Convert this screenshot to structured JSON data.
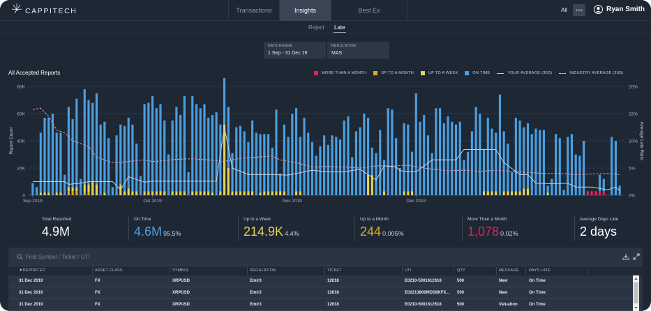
{
  "brand": {
    "name": "CAPPITECH"
  },
  "nav": {
    "tabs": [
      "Transactions",
      "Insights",
      "Best Ex"
    ],
    "active_tab": "Insights",
    "scope_label": "All",
    "user_name": "Ryan Smith"
  },
  "subtabs": {
    "items": [
      "Reject",
      "Late"
    ],
    "active": "Late"
  },
  "filters": {
    "date_range_label": "DATE RANGE",
    "date_range_value": "1 Sep - 31 Dec 19",
    "regulation_label": "REGULATION",
    "regulation_value": "MAS"
  },
  "chart_section": {
    "title": "All Accepted Reports",
    "legend": {
      "more_than_month": "MORE THAN A MONTH",
      "up_to_month": "UP TO A MONTH",
      "up_to_week": "UP TO A WEEK",
      "on_time": "ON TIME",
      "your_average": "YOUR AVERAGE (30D)",
      "industry_average": "INDUSTRY AVERAGE (30D)"
    },
    "colors": {
      "on_time": "#4a9fe0",
      "up_to_week": "#e2d45a",
      "up_to_month": "#e0a82a",
      "more_than_month": "#e0245e",
      "your_average": "#c9cfd8",
      "industry_average": "#d7a3be"
    }
  },
  "chart_data": {
    "type": "bar",
    "x_tick_labels": [
      "Sep 2019",
      "Oct 2019",
      "Nov 2019",
      "Dec 2019"
    ],
    "ylabel": "Report Count",
    "y2label": "Average Late Ratio",
    "ylim": [
      0,
      80000
    ],
    "y_ticks": [
      "0",
      "20K",
      "40K",
      "60K",
      "80K"
    ],
    "y2lim": [
      0,
      20
    ],
    "y2_ticks": [
      "0%",
      "5%",
      "10%",
      "15%",
      "20%"
    ],
    "series": [
      {
        "name": "ON TIME",
        "values": [
          9000,
          6000,
          44000,
          55000,
          55000,
          60000,
          44000,
          44000,
          15000,
          59000,
          50000,
          65000,
          12000,
          70000,
          62000,
          58000,
          67000,
          52000,
          52000,
          42000,
          6000,
          44000,
          44000,
          48000,
          52000,
          49000,
          35000,
          14000,
          64000,
          65000,
          70000,
          61000,
          64000,
          52000,
          30000,
          52000,
          62000,
          56000,
          70000,
          17000,
          70000,
          64000,
          61000,
          64000,
          54000,
          57000,
          61000,
          49000,
          50000,
          45000,
          28000,
          47000,
          48000,
          44000,
          36000,
          52000,
          46000,
          43000,
          42000,
          42000,
          32000,
          60000,
          13000,
          49000,
          43000,
          60000,
          61000,
          40000,
          57000,
          46000,
          39000,
          29000,
          36000,
          44000,
          37000,
          44000,
          43000,
          41000,
          55000,
          58000,
          28000,
          47000,
          50000,
          60000,
          42000,
          20000,
          31000,
          48000,
          23000,
          64000,
          63000,
          42000,
          20000,
          50000,
          49000,
          29000,
          75000,
          54000,
          59000,
          44000,
          31000,
          64000,
          64000,
          53000,
          58000,
          54000,
          52000,
          54000,
          26000,
          32000,
          47000,
          65000,
          60000,
          31000,
          54000,
          46000,
          43000,
          74000,
          44000,
          35000,
          14000,
          54000,
          52000,
          45000,
          48000,
          45000,
          49000,
          48000,
          48000,
          5000,
          12000,
          45000,
          42000,
          4000,
          43000,
          45000,
          30000,
          29000,
          40000,
          0,
          0,
          0,
          12000,
          9000,
          0,
          43000,
          40000,
          7000
        ],
        "total": "4.6M"
      },
      {
        "name": "UP TO A WEEK",
        "values": [
          0,
          0,
          2000,
          2000,
          2000,
          0,
          2000,
          2000,
          0,
          3000,
          3000,
          3000,
          0,
          6000,
          6000,
          10000,
          8000,
          0,
          2000,
          0,
          0,
          0,
          8000,
          3000,
          5000,
          3000,
          3000,
          0,
          3000,
          3000,
          3000,
          3000,
          3000,
          3000,
          0,
          3000,
          3000,
          3000,
          3000,
          0,
          3000,
          3000,
          3000,
          3000,
          3000,
          2000,
          0,
          3000,
          52000,
          20000,
          3000,
          3000,
          3000,
          3000,
          3000,
          3000,
          0,
          2000,
          3000,
          3000,
          3000,
          3000,
          3000,
          3000,
          0,
          0,
          3000,
          3000,
          0,
          0,
          0,
          0,
          0,
          0,
          0,
          0,
          0,
          0,
          0,
          0,
          0,
          0,
          0,
          0,
          15000,
          15000,
          0,
          0,
          3000,
          0,
          0,
          0,
          0,
          3000,
          3000,
          3000,
          0,
          0,
          0,
          0,
          0,
          0,
          0,
          0,
          0,
          0,
          0,
          0,
          0,
          0,
          0,
          0,
          0,
          3000,
          3000,
          3000,
          3000,
          0,
          3000,
          3000,
          3000,
          3000,
          3000,
          5000,
          5000,
          0,
          0,
          0,
          0,
          2000,
          0,
          0,
          0,
          0,
          0,
          0,
          0,
          0,
          0,
          0,
          0,
          0,
          0,
          0,
          0,
          0,
          0,
          0,
          0,
          0
        ],
        "total": "214.9K"
      },
      {
        "name": "UP TO A MONTH",
        "values": [
          0,
          0,
          0,
          0,
          0,
          0,
          0,
          0,
          0,
          3000,
          3000,
          3000,
          0,
          2000,
          2000,
          0,
          0,
          0,
          0,
          0,
          0,
          0,
          0,
          0,
          0,
          0,
          0,
          0,
          0,
          0,
          0,
          0,
          0,
          0,
          0,
          0,
          0,
          0,
          0,
          0,
          0,
          0,
          0,
          0,
          0,
          0,
          0,
          0,
          0,
          0,
          0,
          0,
          0,
          0,
          0,
          0,
          0,
          0,
          0,
          0,
          0,
          0,
          0,
          0,
          0,
          0,
          0,
          0,
          0,
          0,
          0,
          0,
          0,
          0,
          0,
          0,
          0,
          0,
          0,
          0,
          0,
          0,
          0,
          0,
          0,
          0,
          0,
          0,
          0,
          0,
          0,
          0,
          0,
          0,
          0,
          0,
          0,
          0,
          0,
          0,
          0,
          0,
          0,
          0,
          0,
          0,
          0,
          0,
          0,
          0,
          0,
          0,
          0,
          0,
          0,
          0,
          0,
          0,
          0,
          0,
          0,
          0,
          0,
          0,
          0,
          0,
          0,
          0,
          0,
          0,
          0,
          0,
          0,
          0,
          0,
          0,
          0,
          0,
          0,
          0,
          0,
          0,
          0,
          0,
          0,
          0,
          0,
          0,
          0,
          0
        ],
        "total": "244"
      },
      {
        "name": "MORE THAN A MONTH",
        "values": [
          0,
          0,
          0,
          0,
          0,
          0,
          0,
          0,
          0,
          0,
          0,
          0,
          0,
          0,
          0,
          0,
          0,
          0,
          0,
          0,
          0,
          0,
          0,
          0,
          0,
          0,
          0,
          0,
          0,
          0,
          0,
          0,
          0,
          0,
          0,
          0,
          0,
          0,
          0,
          0,
          0,
          0,
          0,
          0,
          0,
          0,
          0,
          0,
          0,
          0,
          0,
          0,
          0,
          0,
          0,
          0,
          0,
          0,
          0,
          0,
          0,
          0,
          0,
          0,
          0,
          0,
          0,
          0,
          0,
          0,
          0,
          0,
          0,
          0,
          0,
          0,
          0,
          0,
          0,
          0,
          0,
          0,
          0,
          0,
          0,
          0,
          0,
          0,
          0,
          0,
          0,
          0,
          0,
          0,
          0,
          0,
          0,
          0,
          0,
          0,
          0,
          0,
          0,
          0,
          0,
          0,
          0,
          0,
          0,
          0,
          0,
          0,
          0,
          0,
          0,
          0,
          0,
          0,
          0,
          0,
          0,
          0,
          0,
          0,
          0,
          0,
          0,
          0,
          0,
          0,
          0,
          0,
          0,
          0,
          0,
          0,
          0,
          0,
          0,
          3000,
          3000,
          3000,
          3000,
          3000,
          0,
          0,
          0,
          0
        ],
        "total": "1,078"
      }
    ],
    "your_average_line": [
      [
        0,
        2.5
      ],
      [
        8,
        2.5
      ],
      [
        9,
        2.0
      ],
      [
        12,
        2.2
      ],
      [
        14,
        2.5
      ],
      [
        20,
        2.5
      ],
      [
        22,
        1.0
      ],
      [
        24,
        3.4
      ],
      [
        28,
        2.4
      ],
      [
        30,
        2.6
      ],
      [
        46,
        2.6
      ],
      [
        48,
        12.5
      ],
      [
        50,
        5.0
      ],
      [
        54,
        3.8
      ],
      [
        60,
        3.8
      ],
      [
        64,
        3.7
      ],
      [
        70,
        4.6
      ],
      [
        74,
        4.3
      ],
      [
        78,
        4.3
      ],
      [
        82,
        4.8
      ],
      [
        86,
        2.8
      ],
      [
        88,
        5.4
      ],
      [
        91,
        5.2
      ],
      [
        92,
        4.5
      ],
      [
        96,
        4.3
      ],
      [
        100,
        6.5
      ],
      [
        104,
        6.5
      ],
      [
        106,
        6.5
      ],
      [
        108,
        8.4
      ],
      [
        116,
        8.4
      ],
      [
        118,
        6.0
      ],
      [
        122,
        3.8
      ],
      [
        124,
        3.8
      ],
      [
        126,
        2.2
      ],
      [
        130,
        2.1
      ],
      [
        134,
        2.2
      ],
      [
        136,
        1.5
      ],
      [
        140,
        1.5
      ],
      [
        144,
        1.0
      ],
      [
        146,
        1.5
      ],
      [
        147,
        0.8
      ]
    ],
    "industry_average_line": [
      [
        0,
        15.8
      ],
      [
        2,
        16.0
      ],
      [
        4,
        14.5
      ],
      [
        6,
        12.0
      ],
      [
        8,
        11.5
      ],
      [
        10,
        10.0
      ],
      [
        12,
        9.5
      ],
      [
        14,
        9.0
      ],
      [
        16,
        7.0
      ],
      [
        18,
        6.5
      ],
      [
        20,
        6.0
      ],
      [
        22,
        6.0
      ],
      [
        25,
        6.3
      ],
      [
        28,
        6.5
      ],
      [
        30,
        6.2
      ],
      [
        32,
        6.3
      ],
      [
        36,
        6.6
      ],
      [
        40,
        6.7
      ],
      [
        44,
        6.5
      ],
      [
        48,
        6.2
      ],
      [
        52,
        6.8
      ],
      [
        56,
        7.0
      ],
      [
        60,
        7.2
      ],
      [
        62,
        6.5
      ],
      [
        66,
        6.0
      ],
      [
        70,
        5.2
      ],
      [
        74,
        5.3
      ],
      [
        78,
        5.2
      ],
      [
        82,
        5.0
      ],
      [
        86,
        5.4
      ],
      [
        90,
        5.4
      ],
      [
        94,
        5.5
      ],
      [
        98,
        5.0
      ],
      [
        100,
        4.8
      ],
      [
        104,
        4.5
      ],
      [
        108,
        4.6
      ],
      [
        112,
        4.4
      ],
      [
        116,
        4.6
      ],
      [
        120,
        4.4
      ],
      [
        124,
        4.2
      ],
      [
        128,
        4.0
      ],
      [
        132,
        4.0
      ],
      [
        136,
        3.8
      ],
      [
        140,
        3.9
      ],
      [
        144,
        4.0
      ],
      [
        146,
        3.9
      ],
      [
        147,
        3.8
      ]
    ]
  },
  "stats": {
    "total_reported_label": "Total Reported",
    "total_reported_value": "4.9M",
    "on_time_label": "On Time",
    "on_time_value": "4.6M",
    "on_time_pct": "95.5%",
    "up_to_week_label": "Up to a Week",
    "up_to_week_value": "214.9K",
    "up_to_week_pct": "4.4%",
    "up_to_month_label": "Up to a Month",
    "up_to_month_value": "244",
    "up_to_month_pct": "0.005%",
    "more_than_month_label": "More Than a Month",
    "more_than_month_value": "1,078",
    "more_than_month_pct": "0.02%",
    "avg_days_late_label": "Average Days Late",
    "avg_days_late_value": "2 days"
  },
  "table": {
    "search_placeholder": "Find Symbol / Ticket / UTI",
    "columns": [
      "▼REPORTED",
      "ASSET CLASS",
      "SYMBOL",
      "REGULATION",
      "TICKET",
      "UTI",
      "QTY",
      "MESSAGE",
      "DAYS LATE"
    ],
    "rows": [
      [
        "31 Dec 2019",
        "FX",
        "XRPUSD",
        "Emir3",
        "12618",
        "E0210-5001612618",
        "500",
        "New",
        "On Time"
      ],
      [
        "31 Dec 2019",
        "FX",
        "XRPUSD",
        "Emir3",
        "12618",
        "E02213800MDS8KFX...",
        "500",
        "New",
        "On Time"
      ],
      [
        "31 Dec 2019",
        "FX",
        "XRPUSD",
        "Emir3",
        "12618",
        "E0210-5001612618",
        "500",
        "Valuation",
        "On Time"
      ]
    ]
  }
}
